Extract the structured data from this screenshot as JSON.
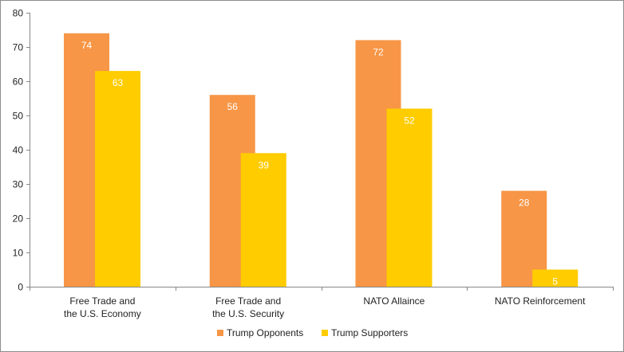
{
  "chart_data": {
    "type": "bar",
    "title": "",
    "xlabel": "",
    "ylabel": "",
    "ylim": [
      0,
      80
    ],
    "yticks": [
      0,
      10,
      20,
      30,
      40,
      50,
      60,
      70,
      80
    ],
    "grid": false,
    "legend_position": "bottom",
    "categories": [
      [
        "Free Trade and",
        "the U.S. Economy"
      ],
      [
        "Free Trade and",
        "the U.S. Security"
      ],
      [
        "NATO Allaince"
      ],
      [
        "NATO Reinforcement"
      ]
    ],
    "series": [
      {
        "name": "Trump Opponents",
        "color": "#F79646",
        "values": [
          74,
          56,
          72,
          28
        ]
      },
      {
        "name": "Trump Supporters",
        "color": "#FFCC00",
        "values": [
          63,
          39,
          52,
          5
        ]
      }
    ]
  }
}
